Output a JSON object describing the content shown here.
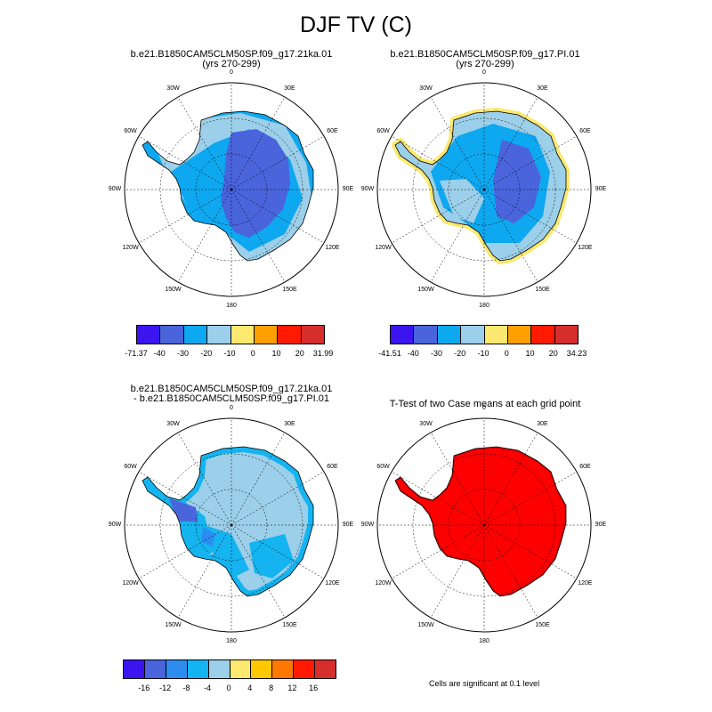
{
  "figure_title": "DJF TV (C)",
  "panels": {
    "top_left": {
      "line1": "b.e21.B1850CAM5CLM50SP.f09_g17.21ka.01",
      "line2": "(yrs 270-299)"
    },
    "top_right": {
      "line1": "b.e21.B1850CAM5CLM50SP.f09_g17.PI.01",
      "line2": "(yrs 270-299)"
    },
    "bottom_left": {
      "line1": "b.e21.B1850CAM5CLM50SP.f09_g17.21ka.01",
      "line2": "- b.e21.B1850CAM5CLM50SP.f09_g17.PI.01"
    },
    "bottom_right": {
      "line1": "T-Test of two Case means at each grid point"
    }
  },
  "longitude_labels": [
    "0",
    "30E",
    "60E",
    "90E",
    "120E",
    "150E",
    "180",
    "150W",
    "120W",
    "90W",
    "60W",
    "30W"
  ],
  "colorbars": {
    "top_left": {
      "colors": [
        "#3c14f0",
        "#4a64dc",
        "#0ea8f0",
        "#9ccfe9",
        "#fde870",
        "#ffa000",
        "#ff1a00",
        "#d62d2d"
      ],
      "labels": [
        "-71.37",
        "-40",
        "-30",
        "-20",
        "-10",
        "0",
        "10",
        "20",
        "31.99"
      ]
    },
    "top_right": {
      "colors": [
        "#3c14f0",
        "#4a64dc",
        "#0ea8f0",
        "#9ccfe9",
        "#fde870",
        "#ffa000",
        "#ff1a00",
        "#d62d2d"
      ],
      "labels": [
        "-41.51",
        "-40",
        "-30",
        "-20",
        "-10",
        "0",
        "10",
        "20",
        "34.23"
      ]
    },
    "bottom_left": {
      "colors": [
        "#3c14f0",
        "#4a64dc",
        "#2c8cf0",
        "#14b4f0",
        "#9ccfe9",
        "#fde870",
        "#ffc800",
        "#ff7800",
        "#ff1a00",
        "#d62d2d"
      ],
      "labels": [
        "-16",
        "-12",
        "-8",
        "-4",
        "0",
        "4",
        "8",
        "12",
        "16"
      ]
    }
  },
  "significance_note": "Cells are significant at 0.1 level",
  "colors": {
    "significant_red": "#ff0000",
    "pi_margin_yellow": "#fde870"
  }
}
